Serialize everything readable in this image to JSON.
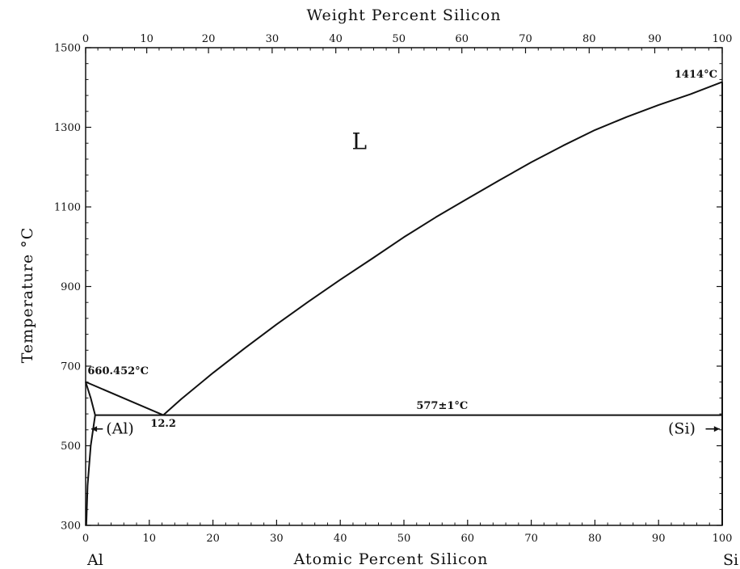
{
  "chart_data": {
    "type": "line",
    "title": "",
    "xlabel": "Atomic Percent Silicon",
    "x2label": "Weight Percent Silicon",
    "ylabel": "Temperature °C",
    "xlim": [
      0,
      100
    ],
    "ylim": [
      300,
      1500
    ],
    "x_ticks": [
      0,
      10,
      20,
      30,
      40,
      50,
      60,
      70,
      80,
      90,
      100
    ],
    "y_ticks": [
      300,
      500,
      700,
      900,
      1100,
      1300,
      1500
    ],
    "x2_ticks": [
      0,
      10,
      20,
      30,
      40,
      50,
      60,
      70,
      80,
      90,
      100
    ],
    "x2_tick_positions_at": [
      0,
      9.6,
      19.3,
      29.3,
      39.3,
      49.2,
      59.1,
      69.1,
      79.1,
      89.4,
      100
    ],
    "endpoint_labels": {
      "left": "Al",
      "right": "Si"
    },
    "series": [
      {
        "values_xy": [
          [
            0,
            660.452
          ],
          [
            12.2,
            577
          ]
        ]
      },
      {
        "values_xy": [
          [
            12.2,
            577
          ],
          [
            15,
            617
          ],
          [
            20,
            683
          ],
          [
            25,
            745
          ],
          [
            30,
            805
          ],
          [
            35,
            862
          ],
          [
            40,
            917
          ],
          [
            45,
            970
          ],
          [
            50,
            1024
          ],
          [
            55,
            1074
          ],
          [
            60,
            1121
          ],
          [
            65,
            1167
          ],
          [
            70,
            1212
          ],
          [
            75,
            1254
          ],
          [
            80,
            1293
          ],
          [
            85,
            1326
          ],
          [
            90,
            1356
          ],
          [
            95,
            1383
          ],
          [
            100,
            1414
          ]
        ]
      },
      {
        "values_xy": [
          [
            1.5,
            577
          ],
          [
            100,
            577
          ]
        ]
      },
      {
        "values_xy": [
          [
            0,
            660.452
          ],
          [
            0.8,
            620
          ],
          [
            1.5,
            577
          ]
        ]
      },
      {
        "values_xy": [
          [
            1.5,
            577
          ],
          [
            0.8,
            500
          ],
          [
            0.3,
            400
          ],
          [
            0.1,
            300
          ]
        ]
      },
      {
        "values_xy": [
          [
            100,
            1414
          ],
          [
            100,
            300
          ]
        ]
      }
    ],
    "annotations": [
      {
        "text": "L",
        "x": 43,
        "y": 1245,
        "kind": "region"
      },
      {
        "text": "660.452°C",
        "x": 0.3,
        "y": 680,
        "kind": "label"
      },
      {
        "text": "1414°C",
        "x": 92.5,
        "y": 1425,
        "kind": "label"
      },
      {
        "text": "577±1°C",
        "x": 56,
        "y": 592,
        "kind": "label"
      },
      {
        "text": "12.2",
        "x": 12.2,
        "y": 548,
        "kind": "label"
      },
      {
        "text": "(Al)",
        "x": 3,
        "y": 530,
        "kind": "phase"
      },
      {
        "text": "(Si)",
        "x": 95,
        "y": 530,
        "kind": "phase"
      }
    ],
    "grid": false,
    "legend": "none"
  }
}
